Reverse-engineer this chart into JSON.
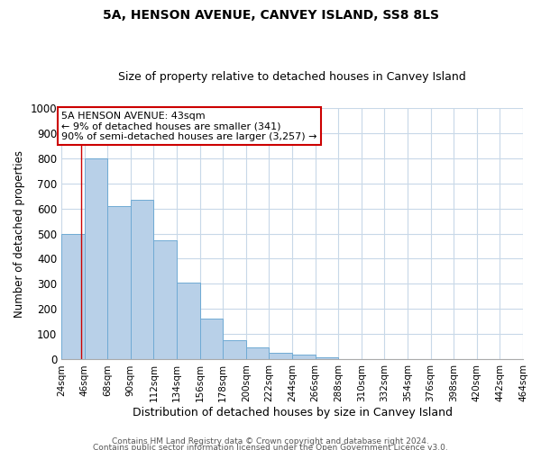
{
  "title": "5A, HENSON AVENUE, CANVEY ISLAND, SS8 8LS",
  "subtitle": "Size of property relative to detached houses in Canvey Island",
  "xlabel": "Distribution of detached houses by size in Canvey Island",
  "ylabel": "Number of detached properties",
  "bar_color": "#b8d0e8",
  "bar_edge_color": "#6faad4",
  "bin_edges": [
    24,
    46,
    68,
    90,
    112,
    134,
    156,
    178,
    200,
    222,
    244,
    266,
    288,
    310,
    332,
    354,
    376,
    398,
    420,
    442,
    464
  ],
  "bar_heights": [
    500,
    800,
    610,
    635,
    475,
    305,
    162,
    78,
    48,
    28,
    20,
    8,
    0,
    0,
    0,
    0,
    0,
    0,
    3,
    0
  ],
  "ylim": [
    0,
    1000
  ],
  "yticks": [
    0,
    100,
    200,
    300,
    400,
    500,
    600,
    700,
    800,
    900,
    1000
  ],
  "property_line_x": 43,
  "property_line_color": "#cc0000",
  "annotation_title": "5A HENSON AVENUE: 43sqm",
  "annotation_line1": "← 9% of detached houses are smaller (341)",
  "annotation_line2": "90% of semi-detached houses are larger (3,257) →",
  "annotation_box_color": "#ffffff",
  "annotation_box_edge_color": "#cc0000",
  "footer_line1": "Contains HM Land Registry data © Crown copyright and database right 2024.",
  "footer_line2": "Contains public sector information licensed under the Open Government Licence v3.0.",
  "background_color": "#ffffff",
  "grid_color": "#c8d8e8"
}
